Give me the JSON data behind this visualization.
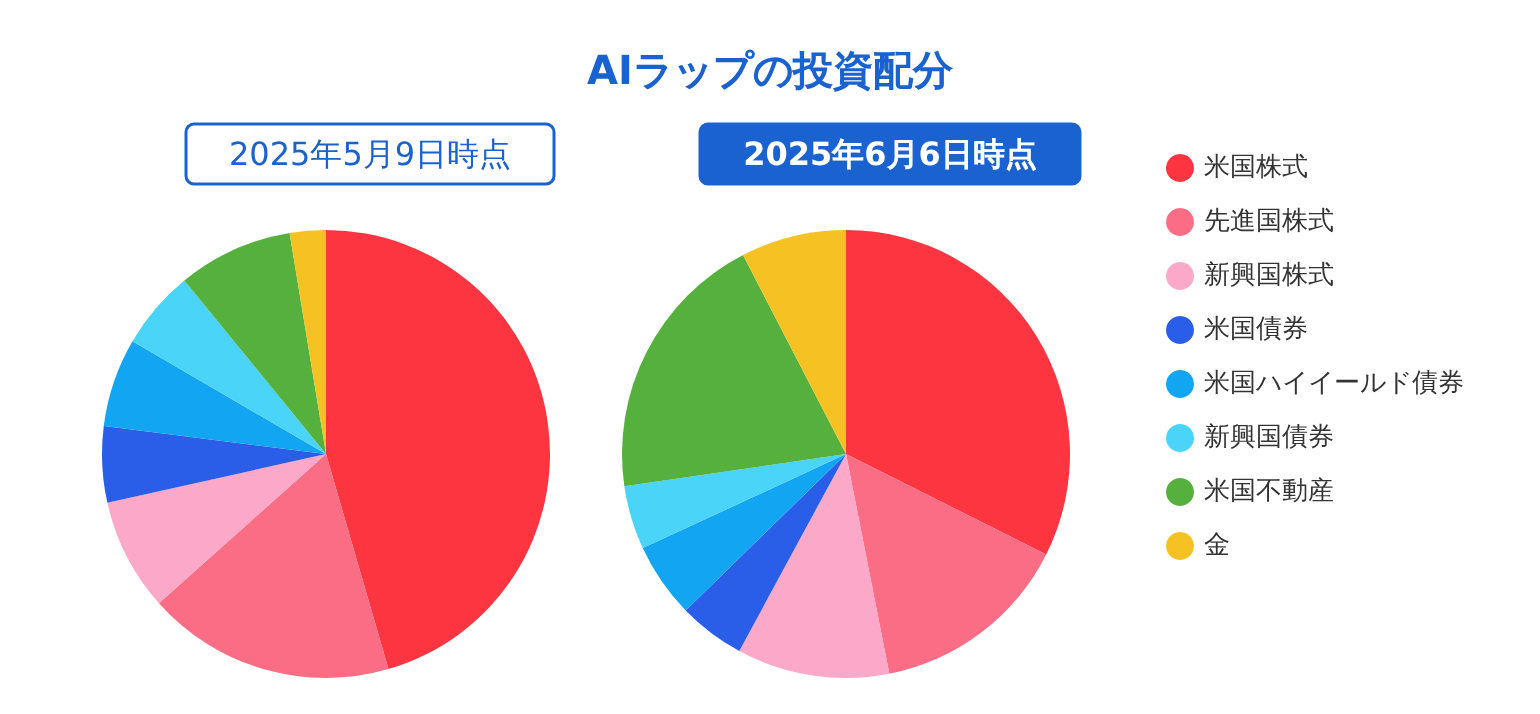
{
  "chart_data": {
    "type": "pie",
    "title": "AIラップの投資配分",
    "categories": [
      "米国株式",
      "先進国株式",
      "新興国株式",
      "米国債券",
      "米国ハイイールド債券",
      "新興国債券",
      "米国不動産",
      "金"
    ],
    "legend": "right",
    "series": [
      {
        "name": "2025年5月9日時点",
        "values": [
          45.5,
          17.9,
          8.1,
          5.5,
          6.4,
          5.7,
          8.3,
          2.6
        ],
        "colors": [
          "#fc3540",
          "#fb6d85",
          "#fca8c8",
          "#2a5ee8",
          "#11a5f2",
          "#4ad4f7",
          "#55b03d",
          "#f6c223"
        ]
      },
      {
        "name": "2025年6月6日時点",
        "values": [
          32.4,
          14.5,
          11.0,
          4.8,
          5.4,
          4.6,
          19.7,
          7.6
        ],
        "colors": [
          "#fc3540",
          "#fb6d85",
          "#fca8c8",
          "#2a5ee8",
          "#11a5f2",
          "#4ad4f7",
          "#55b03d",
          "#f6c223"
        ]
      }
    ]
  }
}
